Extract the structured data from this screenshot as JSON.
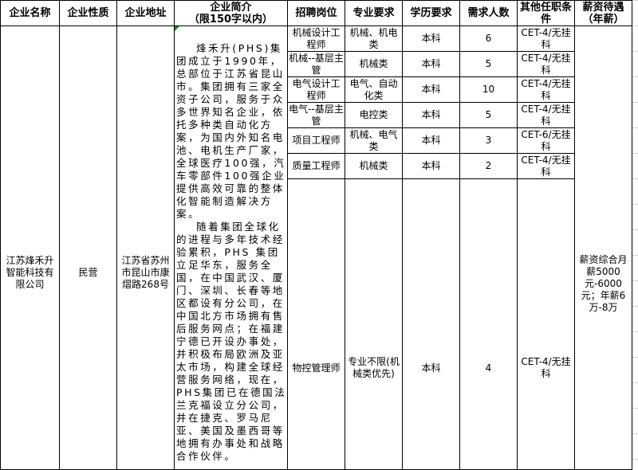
{
  "headers": [
    "企业名称",
    "企业性质",
    "企业地址",
    "企业简介\n（限150字以内）",
    "招聘岗位",
    "专业要求",
    "学历要求",
    "需求人数",
    "其他任职条件",
    "薪资待遇\n（年薪）"
  ],
  "company": {
    "name": "江苏烽禾升智能科技有限公司",
    "type": "民营",
    "address": "江苏省苏州市昆山市康熠路268号",
    "intro": [
      "烽禾升(PHS)集团成立于1990年，总部位于江苏省昆山市。集团拥有三家全资子公司，服务于众多世界知名企业，依托多种类自动化方案，为国内外知名电池、电机生产厂家，全球医疗100强，汽车零部件100强企业提供高效可靠的整体化智能制造解决方案。",
      "随着集团全球化的进程与多年技术经验累积，PHS 集团立足华东，服务全国，在中国武汉、厦门、深圳、长春等地区都设有分公司，在中国北方市场拥有售后服务网点；在福建宁德已开设办事处，并积极布局欧洲及亚太市场，构建全球经营服务网络，现在，PHS集团已在德国法兰克福设立分公司，并在捷克、罗马尼亚、美国及墨西哥等地拥有办事处和战略合作伙伴。"
    ],
    "salary": "薪资综合月薪5000元-6000元；年薪6万-8万"
  },
  "jobs": [
    {
      "position": "机械设计工程师",
      "major": "机械、机电类",
      "education": "本科",
      "count": "6",
      "other": "CET-4/无挂科"
    },
    {
      "position": "机械--基层主管",
      "major": "机械类",
      "education": "本科",
      "count": "5",
      "other": "CET-4/无挂科"
    },
    {
      "position": "电气设计工程师",
      "major": "电气、自动化类",
      "education": "本科",
      "count": "10",
      "other": "CET-4/无挂科"
    },
    {
      "position": "电气--基层主管",
      "major": "电控类",
      "education": "本科",
      "count": "5",
      "other": "CET-4/无挂科"
    },
    {
      "position": "项目工程师",
      "major": "机械、电气类",
      "education": "本科",
      "count": "3",
      "other": "CET-6/无挂科"
    },
    {
      "position": "质量工程师",
      "major": "机械类",
      "education": "本科",
      "count": "2",
      "other": "CET-4/无挂科"
    },
    {
      "position": "物控管理师",
      "major": "专业不限(机械类优先)",
      "education": "本科",
      "count": "4",
      "other": "CET-4/无挂科"
    }
  ]
}
